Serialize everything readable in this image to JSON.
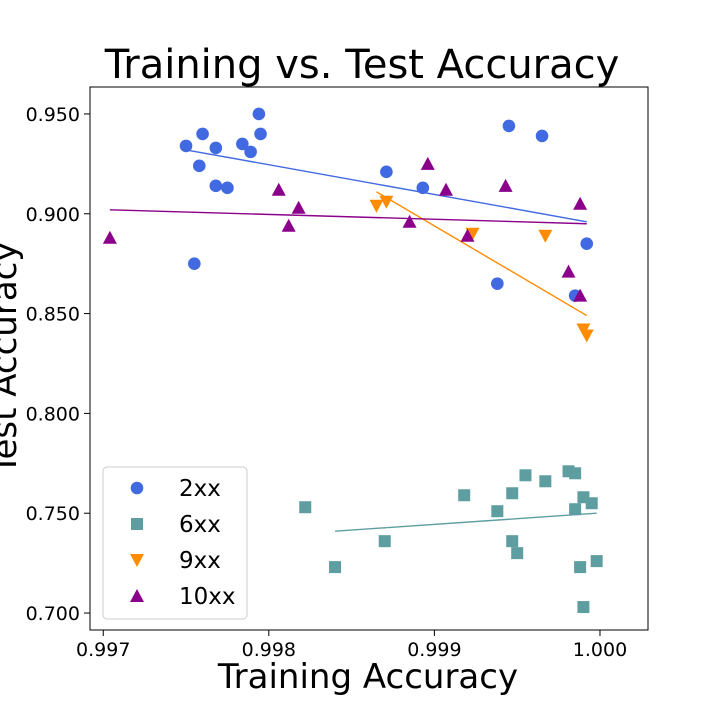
{
  "chart_data": {
    "type": "scatter",
    "title": "Training vs. Test Accuracy",
    "xlabel": "Training Accuracy",
    "ylabel": "Test Accuracy",
    "xlim": [
      0.99692,
      1.00029
    ],
    "ylim": [
      0.6915,
      0.9635
    ],
    "xticks": [
      "0.997",
      "0.998",
      "0.999",
      "1.000"
    ],
    "xtick_values": [
      0.997,
      0.998,
      0.999,
      1.0
    ],
    "yticks": [
      "0.700",
      "0.750",
      "0.800",
      "0.850",
      "0.900",
      "0.950"
    ],
    "ytick_values": [
      0.7,
      0.75,
      0.8,
      0.85,
      0.9,
      0.95
    ],
    "legend_position": "lower-left",
    "series": [
      {
        "name": "2xx",
        "marker": "circle",
        "color": "#4169e1",
        "points": [
          [
            0.9975,
            0.934
          ],
          [
            0.9976,
            0.94
          ],
          [
            0.99758,
            0.924
          ],
          [
            0.99768,
            0.933
          ],
          [
            0.99784,
            0.935
          ],
          [
            0.99789,
            0.931
          ],
          [
            0.99795,
            0.94
          ],
          [
            0.99794,
            0.95
          ],
          [
            0.99755,
            0.875
          ],
          [
            0.99768,
            0.914
          ],
          [
            0.99775,
            0.913
          ],
          [
            0.99871,
            0.921
          ],
          [
            0.99893,
            0.913
          ],
          [
            0.99938,
            0.865
          ],
          [
            0.99945,
            0.944
          ],
          [
            0.99965,
            0.939
          ],
          [
            0.99985,
            0.859
          ],
          [
            0.99992,
            0.885
          ]
        ],
        "trend": [
          [
            0.9975,
            0.932
          ],
          [
            0.99992,
            0.896
          ]
        ]
      },
      {
        "name": "6xx",
        "marker": "square",
        "color": "#5f9ea0",
        "points": [
          [
            0.9984,
            0.723
          ],
          [
            0.9987,
            0.736
          ],
          [
            0.99822,
            0.753
          ],
          [
            0.99918,
            0.759
          ],
          [
            0.99947,
            0.76
          ],
          [
            0.99955,
            0.769
          ],
          [
            0.99947,
            0.736
          ],
          [
            0.9995,
            0.73
          ],
          [
            0.99938,
            0.751
          ],
          [
            0.99967,
            0.766
          ],
          [
            0.99981,
            0.771
          ],
          [
            0.99985,
            0.77
          ],
          [
            0.99985,
            0.752
          ],
          [
            0.9999,
            0.758
          ],
          [
            0.99995,
            0.755
          ],
          [
            0.99988,
            0.723
          ],
          [
            0.99998,
            0.726
          ],
          [
            0.9999,
            0.703
          ]
        ],
        "trend": [
          [
            0.9984,
            0.741
          ],
          [
            0.99998,
            0.75
          ]
        ]
      },
      {
        "name": "9xx",
        "marker": "triangle-down",
        "color": "#ff8c00",
        "points": [
          [
            0.99865,
            0.904
          ],
          [
            0.99871,
            0.906
          ],
          [
            0.99967,
            0.889
          ],
          [
            0.99923,
            0.89
          ],
          [
            0.9999,
            0.842
          ],
          [
            0.99992,
            0.839
          ]
        ],
        "trend": [
          [
            0.99865,
            0.911
          ],
          [
            0.99992,
            0.849
          ]
        ]
      },
      {
        "name": "10xx",
        "marker": "triangle-up",
        "color": "#8b008b",
        "points": [
          [
            0.99704,
            0.888
          ],
          [
            0.99812,
            0.894
          ],
          [
            0.99806,
            0.912
          ],
          [
            0.99818,
            0.903
          ],
          [
            0.99885,
            0.896
          ],
          [
            0.99907,
            0.912
          ],
          [
            0.9992,
            0.889
          ],
          [
            0.99896,
            0.925
          ],
          [
            0.99943,
            0.914
          ],
          [
            0.99981,
            0.871
          ],
          [
            0.99988,
            0.905
          ],
          [
            0.99988,
            0.859
          ]
        ],
        "trend": [
          [
            0.99704,
            0.902
          ],
          [
            0.99992,
            0.895
          ]
        ]
      }
    ]
  }
}
